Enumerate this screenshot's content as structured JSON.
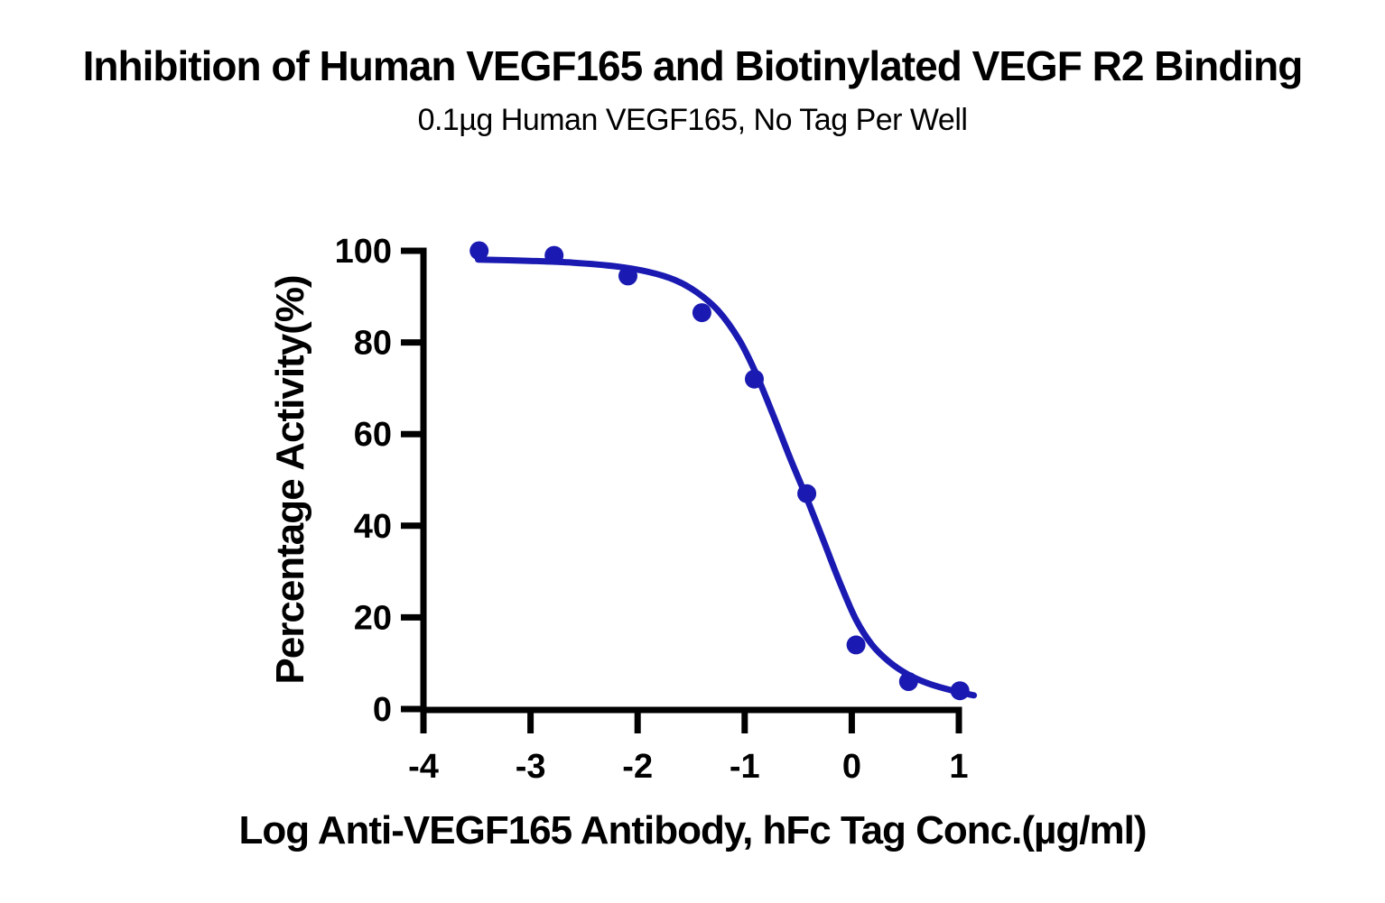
{
  "header": {
    "title": "Inhibition of Human VEGF165 and Biotinylated VEGF R2 Binding",
    "subtitle": "0.1µg Human VEGF165, No Tag Per Well"
  },
  "colors": {
    "accent_blue": "#1A1AB2",
    "axis": "#000000",
    "background": "#FFFFFF"
  },
  "chart_data": {
    "type": "scatter",
    "title": "Inhibition of Human VEGF165 and Biotinylated VEGF R2 Binding",
    "subtitle": "0.1µg Human VEGF165, No Tag Per Well",
    "xlabel": "Log Anti-VEGF165 Antibody, hFc Tag Conc.(µg/ml)",
    "ylabel": "Percentage Activity(%)",
    "xlim": [
      -4,
      1.2
    ],
    "ylim": [
      0,
      100
    ],
    "x_ticks": [
      -4,
      -3,
      -2,
      -1,
      0,
      1
    ],
    "y_ticks": [
      0,
      20,
      40,
      60,
      80,
      100
    ],
    "grid": false,
    "legend": "none",
    "marker_color": "#1A1AB2",
    "curve_color": "#1A1AB2",
    "axis_color": "#000000",
    "points": [
      {
        "x": -3.48,
        "y": 100
      },
      {
        "x": -2.78,
        "y": 99
      },
      {
        "x": -2.09,
        "y": 94.5
      },
      {
        "x": -1.4,
        "y": 86.5
      },
      {
        "x": -0.91,
        "y": 72
      },
      {
        "x": -0.42,
        "y": 47
      },
      {
        "x": 0.04,
        "y": 14
      },
      {
        "x": 0.53,
        "y": 6
      },
      {
        "x": 1.01,
        "y": 4
      }
    ],
    "fit_curve": {
      "model": "sigmoidal dose-response inhibition (4PL fit), top ~98, bottom ~3, IC50 ~ log(-0.5)",
      "samples": [
        [
          -3.49,
          98.1
        ],
        [
          -3.0,
          97.8
        ],
        [
          -2.6,
          97.4
        ],
        [
          -2.2,
          96.6
        ],
        [
          -1.9,
          95.4
        ],
        [
          -1.65,
          93.6
        ],
        [
          -1.45,
          91.0
        ],
        [
          -1.25,
          87.0
        ],
        [
          -1.05,
          80.5
        ],
        [
          -0.9,
          73.5
        ],
        [
          -0.74,
          64.5
        ],
        [
          -0.58,
          55.0
        ],
        [
          -0.42,
          46.0
        ],
        [
          -0.26,
          36.5
        ],
        [
          -0.11,
          27.5
        ],
        [
          0.04,
          19.5
        ],
        [
          0.19,
          14.0
        ],
        [
          0.35,
          10.3
        ],
        [
          0.52,
          7.6
        ],
        [
          0.7,
          5.7
        ],
        [
          0.88,
          4.4
        ],
        [
          1.02,
          3.6
        ],
        [
          1.14,
          3.0
        ]
      ]
    }
  }
}
